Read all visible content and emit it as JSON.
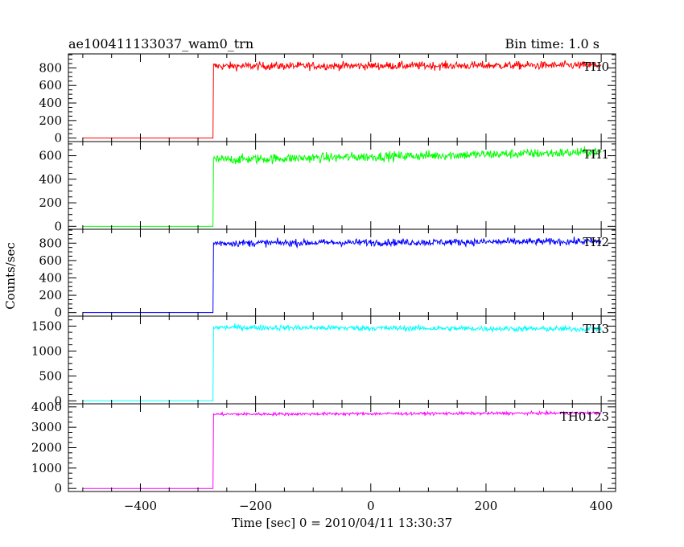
{
  "chart_data": {
    "type": "line",
    "title": "ae100411133037_wam0_trn",
    "subtitle": "Bin time: 1.0 s",
    "xlabel": "Time [sec] 0 = 2010/04/11 13:30:37",
    "ylabel": "Counts/sec",
    "xlim": [
      -525,
      425
    ],
    "x_ticks": [
      -400,
      -200,
      0,
      200,
      400
    ],
    "x_range_data": [
      -500,
      400
    ],
    "onset_time": -273,
    "grid": false,
    "panels": [
      {
        "name": "TH0",
        "color": "#ff0000",
        "ylim": [
          -40,
          960
        ],
        "y_ticks": [
          0,
          200,
          400,
          600,
          800
        ],
        "pre_level": 0,
        "post_start": 820,
        "post_end": 830,
        "noise": 45
      },
      {
        "name": "TH1",
        "color": "#00ff00",
        "ylim": [
          -25,
          720
        ],
        "y_ticks": [
          0,
          200,
          400,
          600
        ],
        "pre_level": 0,
        "post_start": 565,
        "post_end": 630,
        "noise": 40
      },
      {
        "name": "TH2",
        "color": "#0000ff",
        "ylim": [
          -40,
          960
        ],
        "y_ticks": [
          0,
          200,
          400,
          600,
          800
        ],
        "pre_level": 0,
        "post_start": 800,
        "post_end": 820,
        "noise": 40
      },
      {
        "name": "TH3",
        "color": "#00ffff",
        "ylim": [
          -60,
          1700
        ],
        "y_ticks": [
          0,
          500,
          1000,
          1500
        ],
        "pre_level": 0,
        "post_start": 1475,
        "post_end": 1440,
        "noise": 55
      },
      {
        "name": "TH0123",
        "color": "#ff00ff",
        "ylim": [
          -150,
          4150
        ],
        "y_ticks": [
          0,
          1000,
          2000,
          3000,
          4000
        ],
        "pre_level": 0,
        "post_start": 3640,
        "post_end": 3700,
        "noise": 70
      }
    ]
  }
}
